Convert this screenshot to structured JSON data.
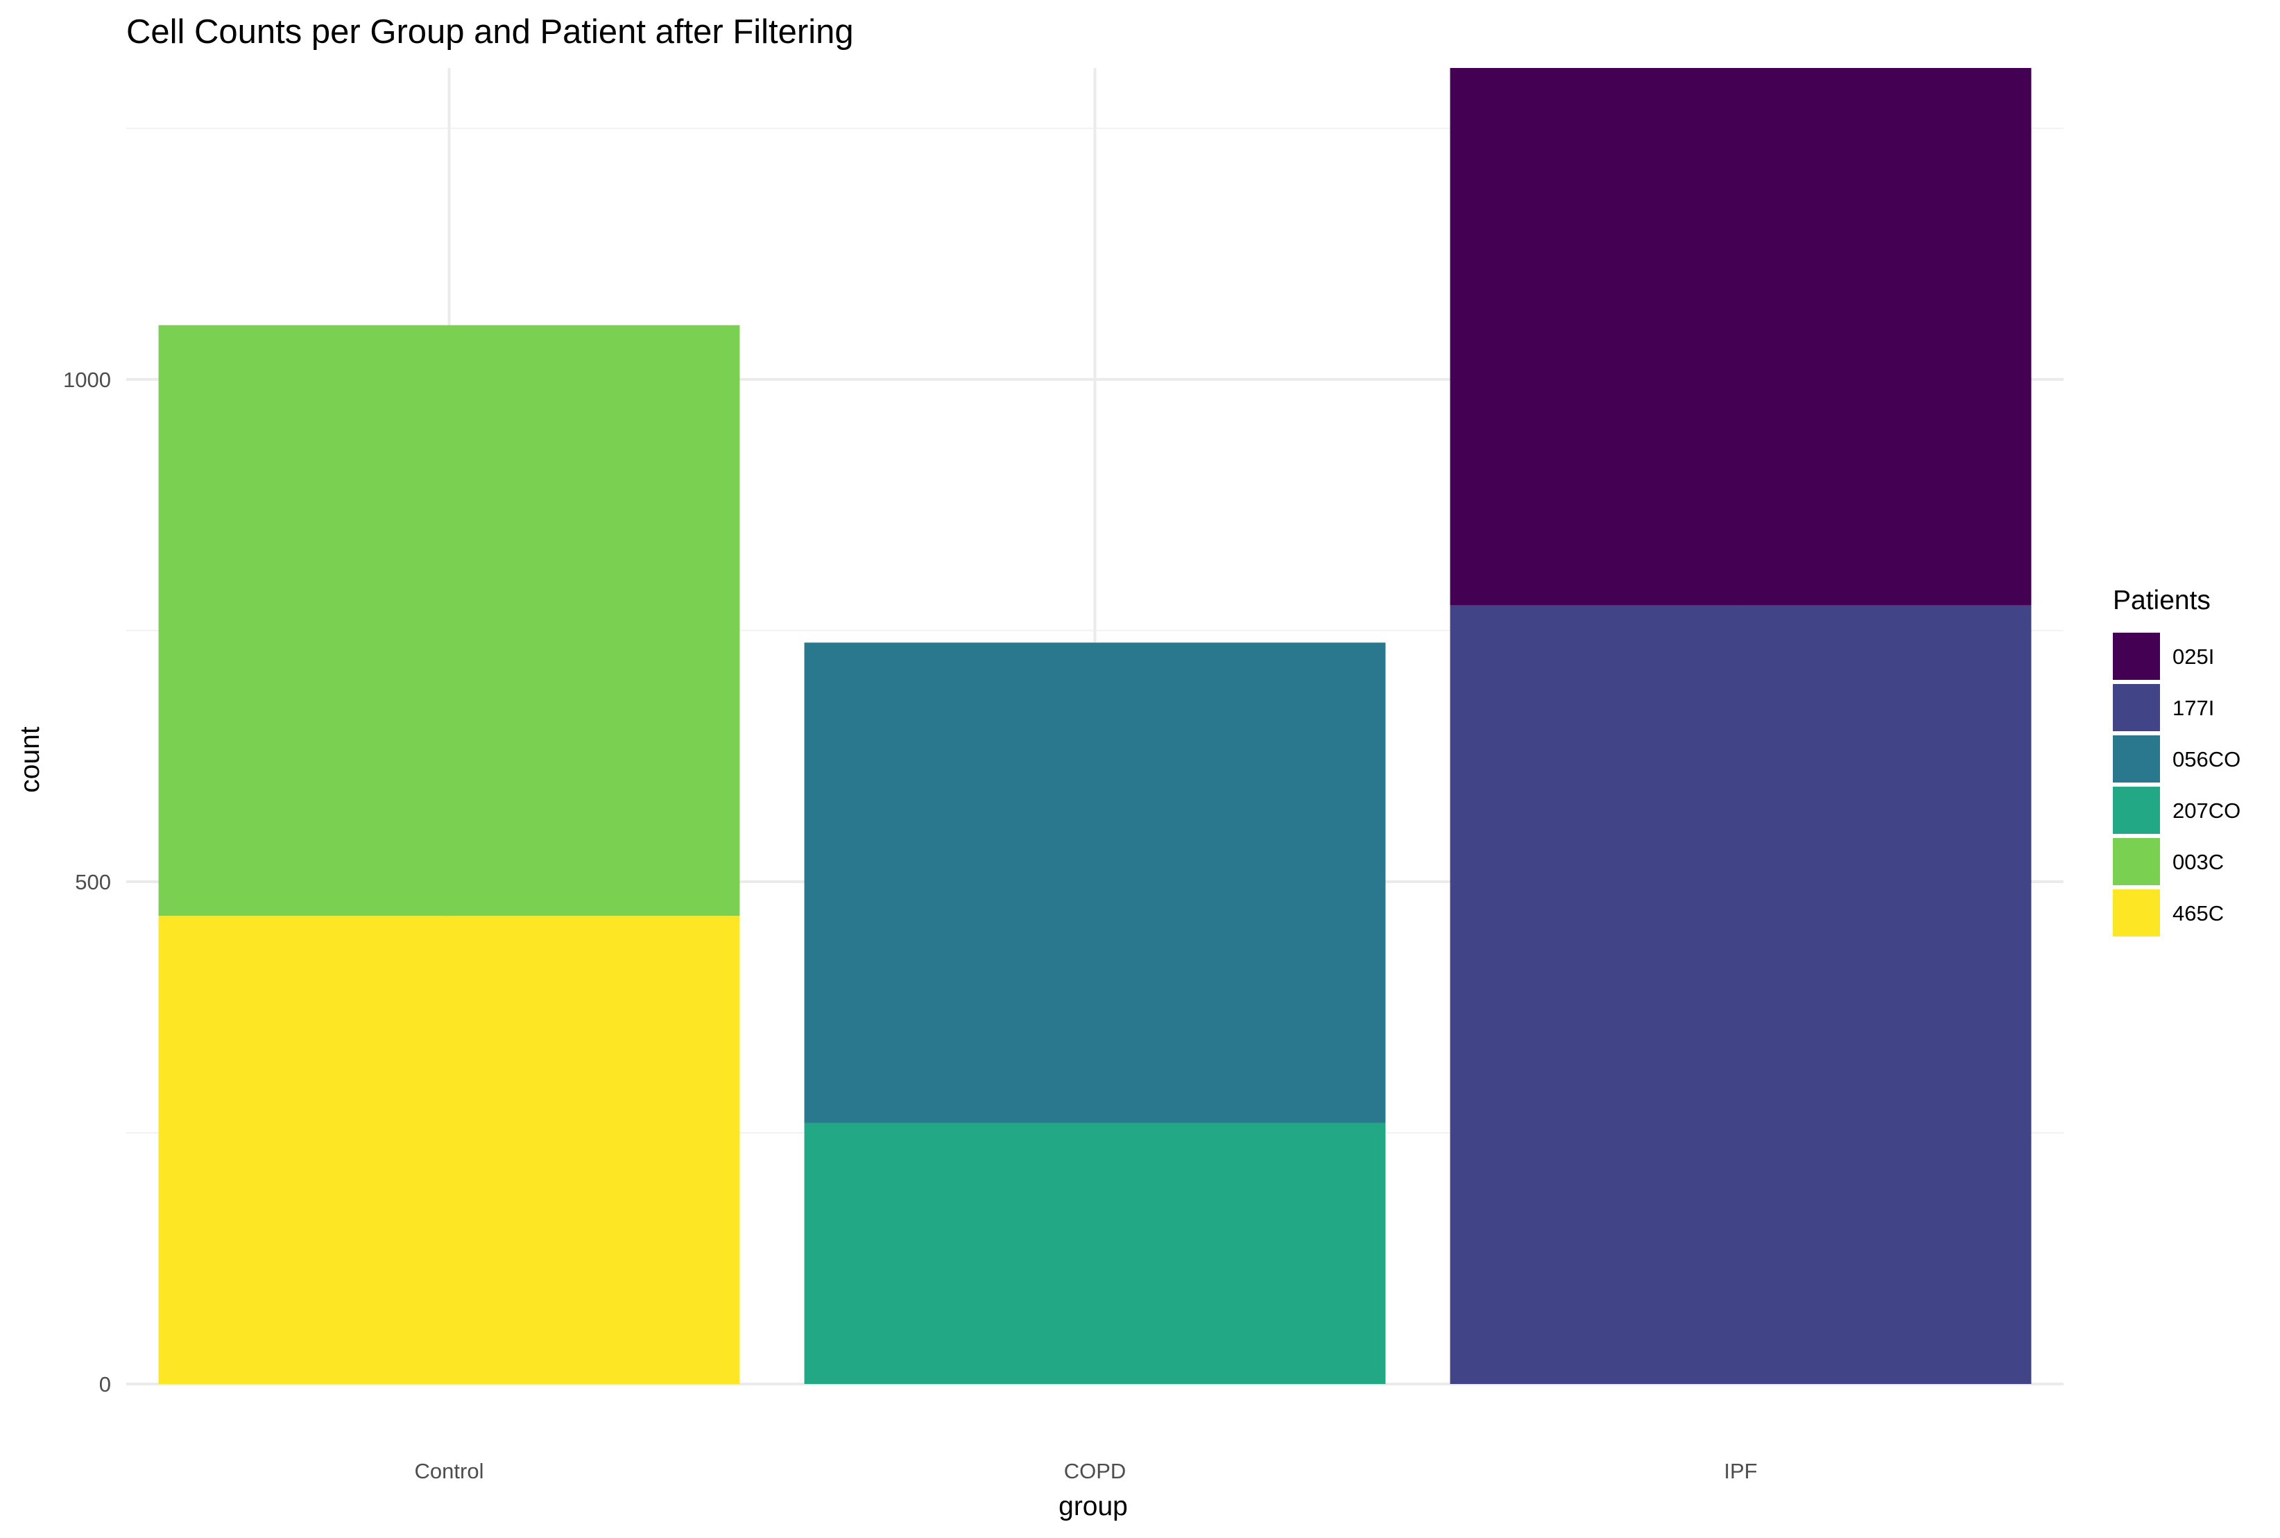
{
  "chart_data": {
    "type": "bar",
    "stacked": true,
    "title": "Cell Counts per Group and Patient after Filtering",
    "xlabel": "group",
    "ylabel": "count",
    "categories": [
      "Control",
      "COPD",
      "IPF"
    ],
    "ylim": [
      0,
      1310
    ],
    "yticks": [
      0,
      500,
      1000
    ],
    "grid": true,
    "legend": {
      "title": "Patients",
      "position": "right"
    },
    "series": [
      {
        "name": "025I",
        "color": "#440154",
        "values": [
          0,
          0,
          535
        ]
      },
      {
        "name": "177I",
        "color": "#414487",
        "values": [
          0,
          0,
          775
        ]
      },
      {
        "name": "056CO",
        "color": "#2a788e",
        "values": [
          0,
          478,
          0
        ]
      },
      {
        "name": "207CO",
        "color": "#22a884",
        "values": [
          0,
          260,
          0
        ]
      },
      {
        "name": "003C",
        "color": "#7ad151",
        "values": [
          588,
          0,
          0
        ]
      },
      {
        "name": "465C",
        "color": "#fde725",
        "values": [
          466,
          0,
          0
        ]
      }
    ]
  }
}
